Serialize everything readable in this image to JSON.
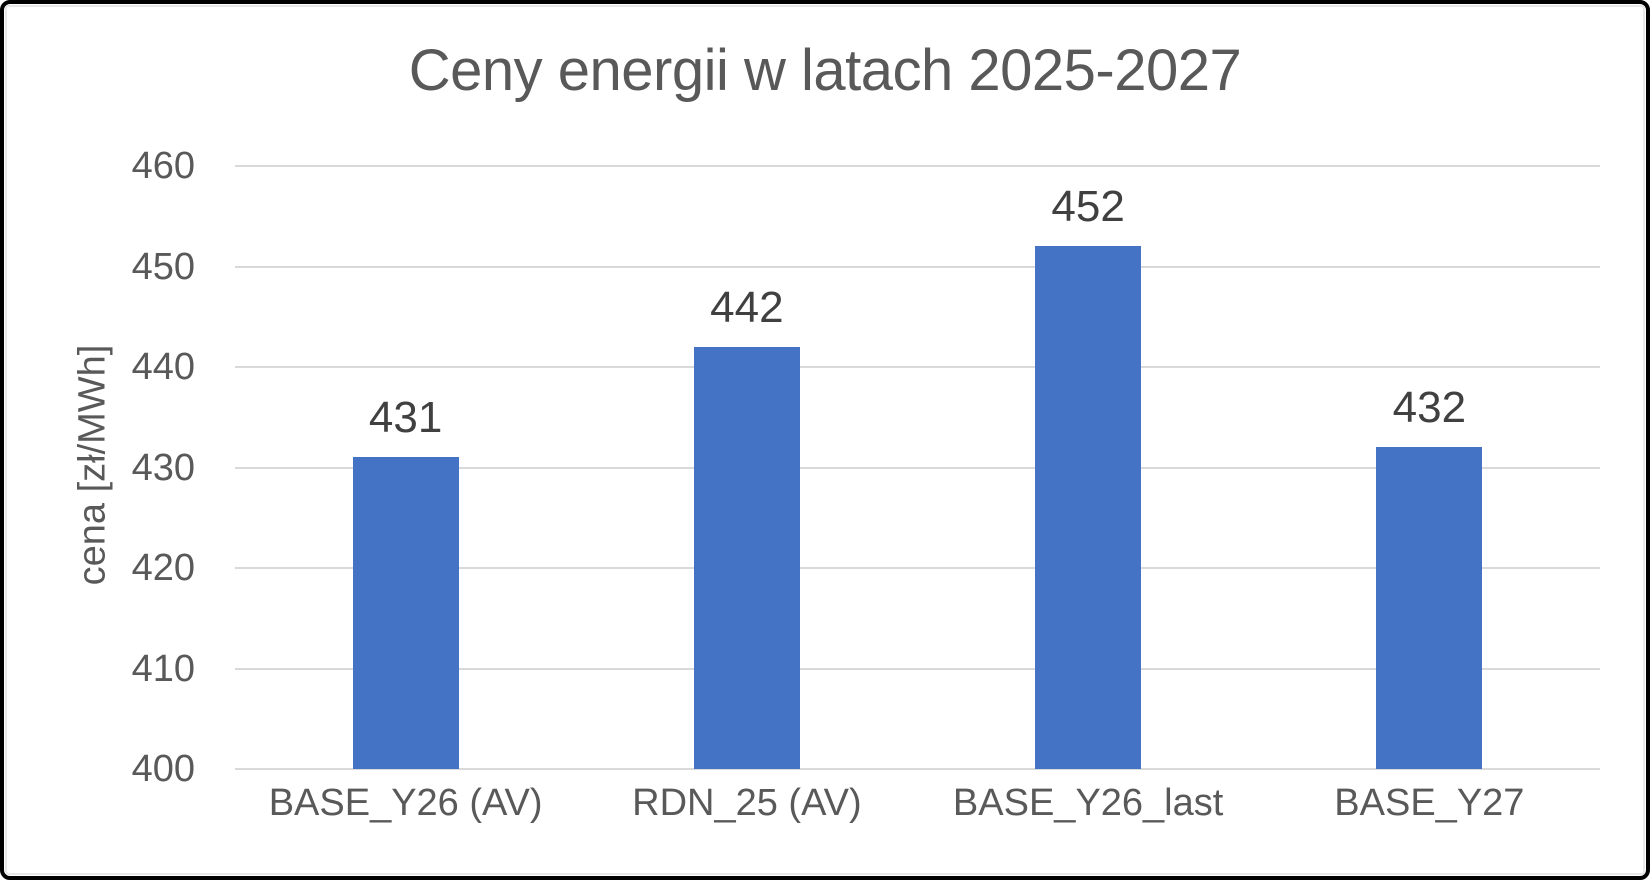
{
  "frame": {
    "background_color": "#ffffff",
    "border_color": "#000000",
    "inner_border_color": "#e8e8e8"
  },
  "chart_data": {
    "type": "bar",
    "title": "Ceny energii w latach 2025-2027",
    "xlabel": "",
    "ylabel": "cena [zł/MWh]",
    "categories": [
      "BASE_Y26 (AV)",
      "RDN_25 (AV)",
      "BASE_Y26_last",
      "BASE_Y27"
    ],
    "values": [
      431,
      442,
      452,
      432
    ],
    "data_labels": [
      "431",
      "442",
      "452",
      "432"
    ],
    "ylim": [
      400,
      460
    ],
    "yticks": [
      400,
      410,
      420,
      430,
      440,
      450,
      460
    ],
    "grid": true,
    "legend_position": "none",
    "bar_color": "#4472C4",
    "gridline_color": "#d9d9d9",
    "axis_text_color": "#595959",
    "data_label_color": "#404040"
  }
}
